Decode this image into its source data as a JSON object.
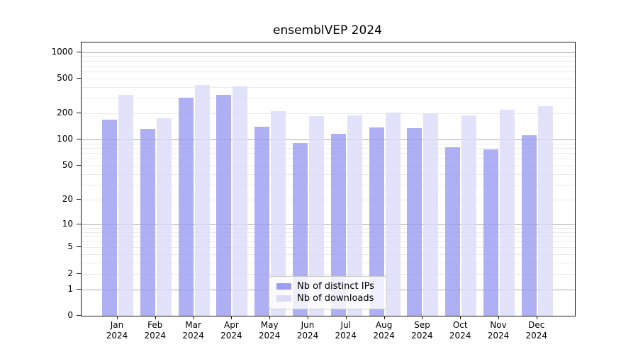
{
  "title": "ensemblVEP 2024",
  "legend": {
    "items": [
      {
        "label": "Nb of distinct IPs",
        "color": "#9d9df1"
      },
      {
        "label": "Nb of downloads",
        "color": "#dcdcf9"
      }
    ]
  },
  "chart_data": {
    "type": "bar",
    "title": "ensemblVEP 2024",
    "categories": [
      "Jan",
      "Feb",
      "Mar",
      "Apr",
      "May",
      "Jun",
      "Jul",
      "Aug",
      "Sep",
      "Oct",
      "Nov",
      "Dec"
    ],
    "category_year": "2024",
    "series": [
      {
        "name": "Nb of distinct IPs",
        "color": "#9d9df1",
        "values": [
          170,
          133,
          300,
          325,
          142,
          92,
          117,
          139,
          136,
          82,
          78,
          113
        ]
      },
      {
        "name": "Nb of downloads",
        "color": "#dcdcf9",
        "values": [
          325,
          175,
          420,
          410,
          212,
          188,
          190,
          206,
          199,
          189,
          220,
          240
        ]
      }
    ],
    "yscale": "log1p",
    "yticks": [
      0,
      1,
      2,
      5,
      10,
      20,
      50,
      100,
      200,
      500,
      1000
    ],
    "ylim": [
      0,
      1290
    ],
    "grid": "horizontal",
    "grid_major_at": [
      1,
      10,
      100,
      1000
    ],
    "grid_major_color": "#ababab",
    "grid_minor_color": "#ebebeb",
    "legend_position": "lower center"
  }
}
